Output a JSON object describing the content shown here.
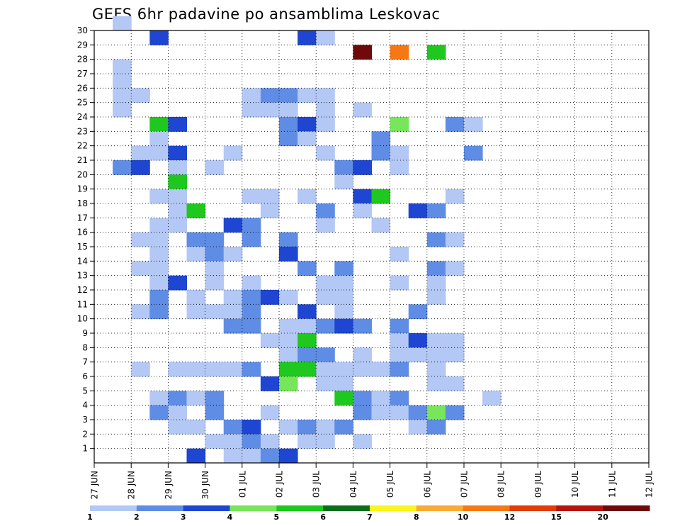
{
  "chart_data": {
    "type": "heatmap",
    "title": "GEFS 6hr padavine po ansamblima Leskovac",
    "xlabel": "",
    "ylabel": "",
    "x_tick_labels": [
      "27 JUN",
      "28 JUN",
      "29 JUN",
      "30 JUN",
      "01 JUL",
      "02 JUL",
      "03 JUL",
      "04 JUL",
      "05 JUL",
      "06 JUL",
      "07 JUL",
      "08 JUL",
      "09 JUL",
      "10 JUL",
      "11 JUL",
      "12 JUL"
    ],
    "y_tick_labels": [
      "1",
      "2",
      "3",
      "4",
      "5",
      "6",
      "7",
      "8",
      "9",
      "10",
      "11",
      "12",
      "13",
      "14",
      "15",
      "16",
      "17",
      "18",
      "19",
      "20",
      "21",
      "22",
      "23",
      "24",
      "25",
      "26",
      "27",
      "28",
      "29",
      "30"
    ],
    "xlim": [
      0,
      60
    ],
    "ylim": [
      0,
      30
    ],
    "grid": true,
    "steps_per_day": 4,
    "color_scale": {
      "labels": [
        "1",
        "2",
        "3",
        "4",
        "5",
        "6",
        "7",
        "8",
        "10",
        "12",
        "15",
        "20"
      ],
      "colors": [
        "#b4c8f5",
        "#5f8de5",
        "#1e46d2",
        "#78e65a",
        "#1ec81e",
        "#0a6e1e",
        "#faf51e",
        "#faaa37",
        "#f57814",
        "#e13c0a",
        "#b4140a",
        "#6e0a0a"
      ]
    },
    "cells": [
      [
        0.5,
        30,
        0
      ],
      [
        1.5,
        29,
        2
      ],
      [
        5.5,
        29,
        2
      ],
      [
        6,
        29,
        0
      ],
      [
        7,
        28,
        11
      ],
      [
        8,
        28,
        8
      ],
      [
        9,
        28,
        4
      ],
      [
        0.5,
        27,
        0
      ],
      [
        0.5,
        26,
        0
      ],
      [
        0.5,
        25,
        0
      ],
      [
        1,
        25,
        0
      ],
      [
        4,
        25,
        0
      ],
      [
        4.5,
        25,
        1
      ],
      [
        5,
        25,
        1
      ],
      [
        5.5,
        25,
        0
      ],
      [
        6,
        25,
        0
      ],
      [
        0.5,
        24,
        0
      ],
      [
        4,
        24,
        0
      ],
      [
        4.5,
        24,
        0
      ],
      [
        5,
        24,
        0
      ],
      [
        6,
        24,
        0
      ],
      [
        7,
        24,
        0
      ],
      [
        1.5,
        23,
        4
      ],
      [
        2,
        23,
        2
      ],
      [
        5,
        23,
        1
      ],
      [
        5.5,
        23,
        2
      ],
      [
        6,
        23,
        0
      ],
      [
        8,
        23,
        3
      ],
      [
        9.5,
        23,
        1
      ],
      [
        10,
        23,
        0
      ],
      [
        1.5,
        22,
        0
      ],
      [
        5,
        22,
        1
      ],
      [
        5.5,
        22,
        0
      ],
      [
        7.5,
        22,
        1
      ],
      [
        1,
        21,
        0
      ],
      [
        1.5,
        21,
        0
      ],
      [
        2,
        21,
        2
      ],
      [
        3.5,
        21,
        0
      ],
      [
        6,
        21,
        0
      ],
      [
        7.5,
        21,
        1
      ],
      [
        8,
        21,
        0
      ],
      [
        10,
        21,
        1
      ],
      [
        0.5,
        20,
        1
      ],
      [
        1,
        20,
        2
      ],
      [
        2,
        20,
        0
      ],
      [
        3,
        20,
        0
      ],
      [
        6.5,
        20,
        1
      ],
      [
        7,
        20,
        2
      ],
      [
        8,
        20,
        0
      ],
      [
        2,
        19,
        4
      ],
      [
        6.5,
        19,
        0
      ],
      [
        1.5,
        18,
        0
      ],
      [
        2,
        18,
        0
      ],
      [
        4,
        18,
        0
      ],
      [
        4.5,
        18,
        0
      ],
      [
        5.5,
        18,
        0
      ],
      [
        7,
        18,
        2
      ],
      [
        7.5,
        18,
        4
      ],
      [
        9.5,
        18,
        0
      ],
      [
        2,
        17,
        0
      ],
      [
        2.5,
        17,
        4
      ],
      [
        4.5,
        17,
        0
      ],
      [
        6,
        17,
        1
      ],
      [
        7,
        17,
        0
      ],
      [
        8.5,
        17,
        2
      ],
      [
        9,
        17,
        1
      ],
      [
        1.5,
        16,
        0
      ],
      [
        2,
        16,
        0
      ],
      [
        3.5,
        16,
        2
      ],
      [
        4,
        16,
        1
      ],
      [
        6,
        16,
        0
      ],
      [
        7.5,
        16,
        0
      ],
      [
        1,
        15,
        0
      ],
      [
        1.5,
        15,
        0
      ],
      [
        2.5,
        15,
        1
      ],
      [
        3,
        15,
        1
      ],
      [
        4,
        15,
        1
      ],
      [
        5,
        15,
        1
      ],
      [
        9,
        15,
        1
      ],
      [
        9.5,
        15,
        0
      ],
      [
        1.5,
        14,
        0
      ],
      [
        2.5,
        14,
        0
      ],
      [
        3,
        14,
        1
      ],
      [
        3.5,
        14,
        0
      ],
      [
        5,
        14,
        2
      ],
      [
        8,
        14,
        0
      ],
      [
        1,
        13,
        0
      ],
      [
        1.5,
        13,
        0
      ],
      [
        3,
        13,
        0
      ],
      [
        5.5,
        13,
        1
      ],
      [
        6.5,
        13,
        1
      ],
      [
        9,
        13,
        1
      ],
      [
        9.5,
        13,
        0
      ],
      [
        1.5,
        12,
        0
      ],
      [
        2,
        12,
        2
      ],
      [
        3,
        12,
        0
      ],
      [
        4,
        12,
        0
      ],
      [
        6,
        12,
        0
      ],
      [
        6.5,
        12,
        0
      ],
      [
        8,
        12,
        0
      ],
      [
        9,
        12,
        0
      ],
      [
        1.5,
        11,
        1
      ],
      [
        2.5,
        11,
        0
      ],
      [
        3.5,
        11,
        0
      ],
      [
        4,
        11,
        1
      ],
      [
        4.5,
        11,
        2
      ],
      [
        5,
        11,
        0
      ],
      [
        6,
        11,
        0
      ],
      [
        6.5,
        11,
        0
      ],
      [
        9,
        11,
        0
      ],
      [
        1,
        10,
        0
      ],
      [
        1.5,
        10,
        1
      ],
      [
        2.5,
        10,
        0
      ],
      [
        3,
        10,
        0
      ],
      [
        3.5,
        10,
        0
      ],
      [
        4,
        10,
        1
      ],
      [
        5.5,
        10,
        2
      ],
      [
        6.5,
        10,
        0
      ],
      [
        8.5,
        10,
        1
      ],
      [
        3.5,
        9,
        1
      ],
      [
        4,
        9,
        1
      ],
      [
        5,
        9,
        0
      ],
      [
        5.5,
        9,
        0
      ],
      [
        6,
        9,
        1
      ],
      [
        6.5,
        9,
        2
      ],
      [
        7,
        9,
        1
      ],
      [
        8,
        9,
        1
      ],
      [
        4.5,
        8,
        0
      ],
      [
        5,
        8,
        0
      ],
      [
        5.5,
        8,
        4
      ],
      [
        8,
        8,
        0
      ],
      [
        8.5,
        8,
        2
      ],
      [
        9,
        8,
        0
      ],
      [
        9.5,
        8,
        0
      ],
      [
        5,
        7,
        0
      ],
      [
        5.5,
        7,
        1
      ],
      [
        6,
        7,
        1
      ],
      [
        7,
        7,
        0
      ],
      [
        8,
        7,
        0
      ],
      [
        8.5,
        7,
        0
      ],
      [
        9,
        7,
        0
      ],
      [
        9.5,
        7,
        0
      ],
      [
        1,
        6,
        0
      ],
      [
        2,
        6,
        0
      ],
      [
        2.5,
        6,
        0
      ],
      [
        3,
        6,
        0
      ],
      [
        3.5,
        6,
        0
      ],
      [
        4,
        6,
        1
      ],
      [
        5,
        6,
        4
      ],
      [
        5.5,
        6,
        4
      ],
      [
        6,
        6,
        0
      ],
      [
        6.5,
        6,
        0
      ],
      [
        7,
        6,
        0
      ],
      [
        7.5,
        6,
        0
      ],
      [
        8,
        6,
        1
      ],
      [
        9,
        6,
        0
      ],
      [
        4.5,
        5,
        2
      ],
      [
        5,
        5,
        3
      ],
      [
        6,
        5,
        0
      ],
      [
        6.5,
        5,
        0
      ],
      [
        9,
        5,
        0
      ],
      [
        9.5,
        5,
        0
      ],
      [
        1.5,
        4,
        0
      ],
      [
        2,
        4,
        1
      ],
      [
        2.5,
        4,
        0
      ],
      [
        3,
        4,
        1
      ],
      [
        6.5,
        4,
        4
      ],
      [
        7,
        4,
        1
      ],
      [
        7.5,
        4,
        0
      ],
      [
        8,
        4,
        1
      ],
      [
        10.5,
        4,
        0
      ],
      [
        1.5,
        3,
        1
      ],
      [
        2,
        3,
        0
      ],
      [
        3,
        3,
        1
      ],
      [
        4.5,
        3,
        0
      ],
      [
        7,
        3,
        1
      ],
      [
        7.5,
        3,
        0
      ],
      [
        8,
        3,
        0
      ],
      [
        8.5,
        3,
        1
      ],
      [
        9,
        3,
        3
      ],
      [
        9.5,
        3,
        1
      ],
      [
        2,
        2,
        0
      ],
      [
        2.5,
        2,
        0
      ],
      [
        3.5,
        2,
        1
      ],
      [
        4,
        2,
        2
      ],
      [
        5,
        2,
        0
      ],
      [
        5.5,
        2,
        1
      ],
      [
        6,
        2,
        0
      ],
      [
        6.5,
        2,
        1
      ],
      [
        8.5,
        2,
        0
      ],
      [
        9,
        2,
        1
      ],
      [
        3,
        1,
        0
      ],
      [
        3.5,
        1,
        0
      ],
      [
        4,
        1,
        1
      ],
      [
        4.5,
        1,
        0
      ],
      [
        5.5,
        1,
        0
      ],
      [
        6,
        1,
        0
      ],
      [
        7,
        1,
        0
      ],
      [
        2.5,
        0,
        2
      ],
      [
        3.5,
        0,
        0
      ],
      [
        4,
        0,
        0
      ],
      [
        4.5,
        0,
        1
      ],
      [
        5,
        0,
        2
      ]
    ]
  }
}
